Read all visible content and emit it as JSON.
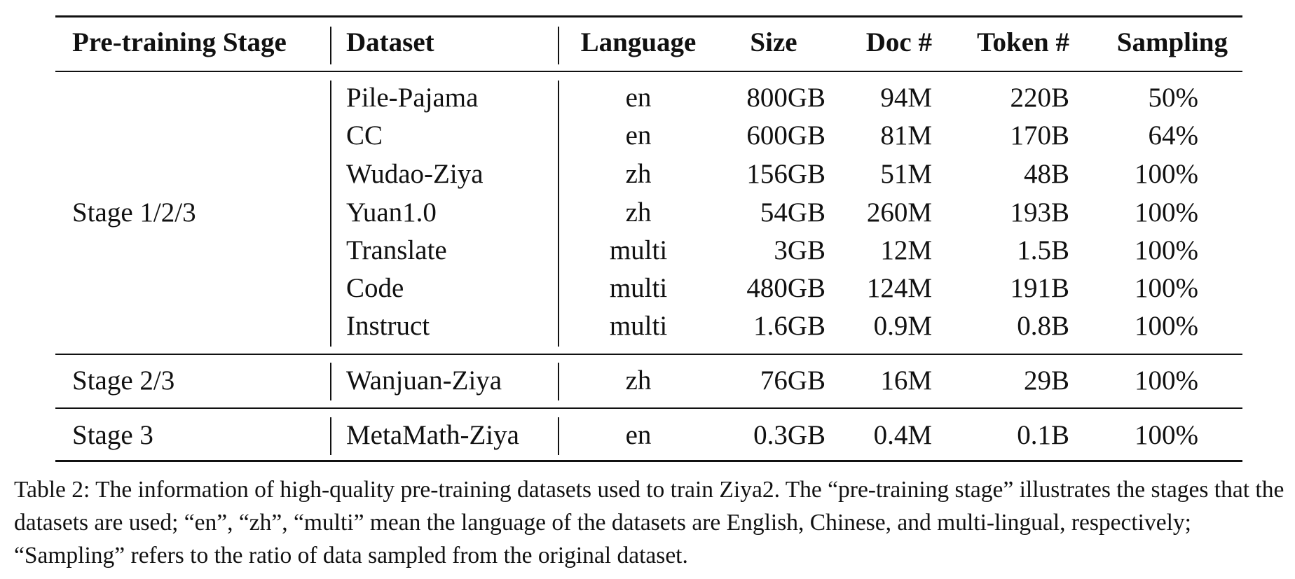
{
  "table": {
    "headers": [
      "Pre-training Stage",
      "Dataset",
      "Language",
      "Size",
      "Doc #",
      "Token #",
      "Sampling"
    ],
    "groups": [
      {
        "stage": "Stage 1/2/3",
        "rows": [
          {
            "dataset": "Pile-Pajama",
            "language": "en",
            "size": "800GB",
            "doc": "94M",
            "token": "220B",
            "sampling": "50%"
          },
          {
            "dataset": "CC",
            "language": "en",
            "size": "600GB",
            "doc": "81M",
            "token": "170B",
            "sampling": "64%"
          },
          {
            "dataset": "Wudao-Ziya",
            "language": "zh",
            "size": "156GB",
            "doc": "51M",
            "token": "48B",
            "sampling": "100%"
          },
          {
            "dataset": "Yuan1.0",
            "language": "zh",
            "size": "54GB",
            "doc": "260M",
            "token": "193B",
            "sampling": "100%"
          },
          {
            "dataset": "Translate",
            "language": "multi",
            "size": "3GB",
            "doc": "12M",
            "token": "1.5B",
            "sampling": "100%"
          },
          {
            "dataset": "Code",
            "language": "multi",
            "size": "480GB",
            "doc": "124M",
            "token": "191B",
            "sampling": "100%"
          },
          {
            "dataset": "Instruct",
            "language": "multi",
            "size": "1.6GB",
            "doc": "0.9M",
            "token": "0.8B",
            "sampling": "100%"
          }
        ]
      },
      {
        "stage": "Stage 2/3",
        "rows": [
          {
            "dataset": "Wanjuan-Ziya",
            "language": "zh",
            "size": "76GB",
            "doc": "16M",
            "token": "29B",
            "sampling": "100%"
          }
        ]
      },
      {
        "stage": "Stage 3",
        "rows": [
          {
            "dataset": "MetaMath-Ziya",
            "language": "en",
            "size": "0.3GB",
            "doc": "0.4M",
            "token": "0.1B",
            "sampling": "100%"
          }
        ]
      }
    ]
  },
  "caption": "Table 2: The information of high-quality pre-training datasets used to train Ziya2. The “pre-training stage” illustrates the stages that the datasets are used; “en”, “zh”, “multi” mean the language of the datasets are English, Chinese, and multi-lingual, respectively; “Sampling” refers to the ratio of data sampled from the original dataset."
}
